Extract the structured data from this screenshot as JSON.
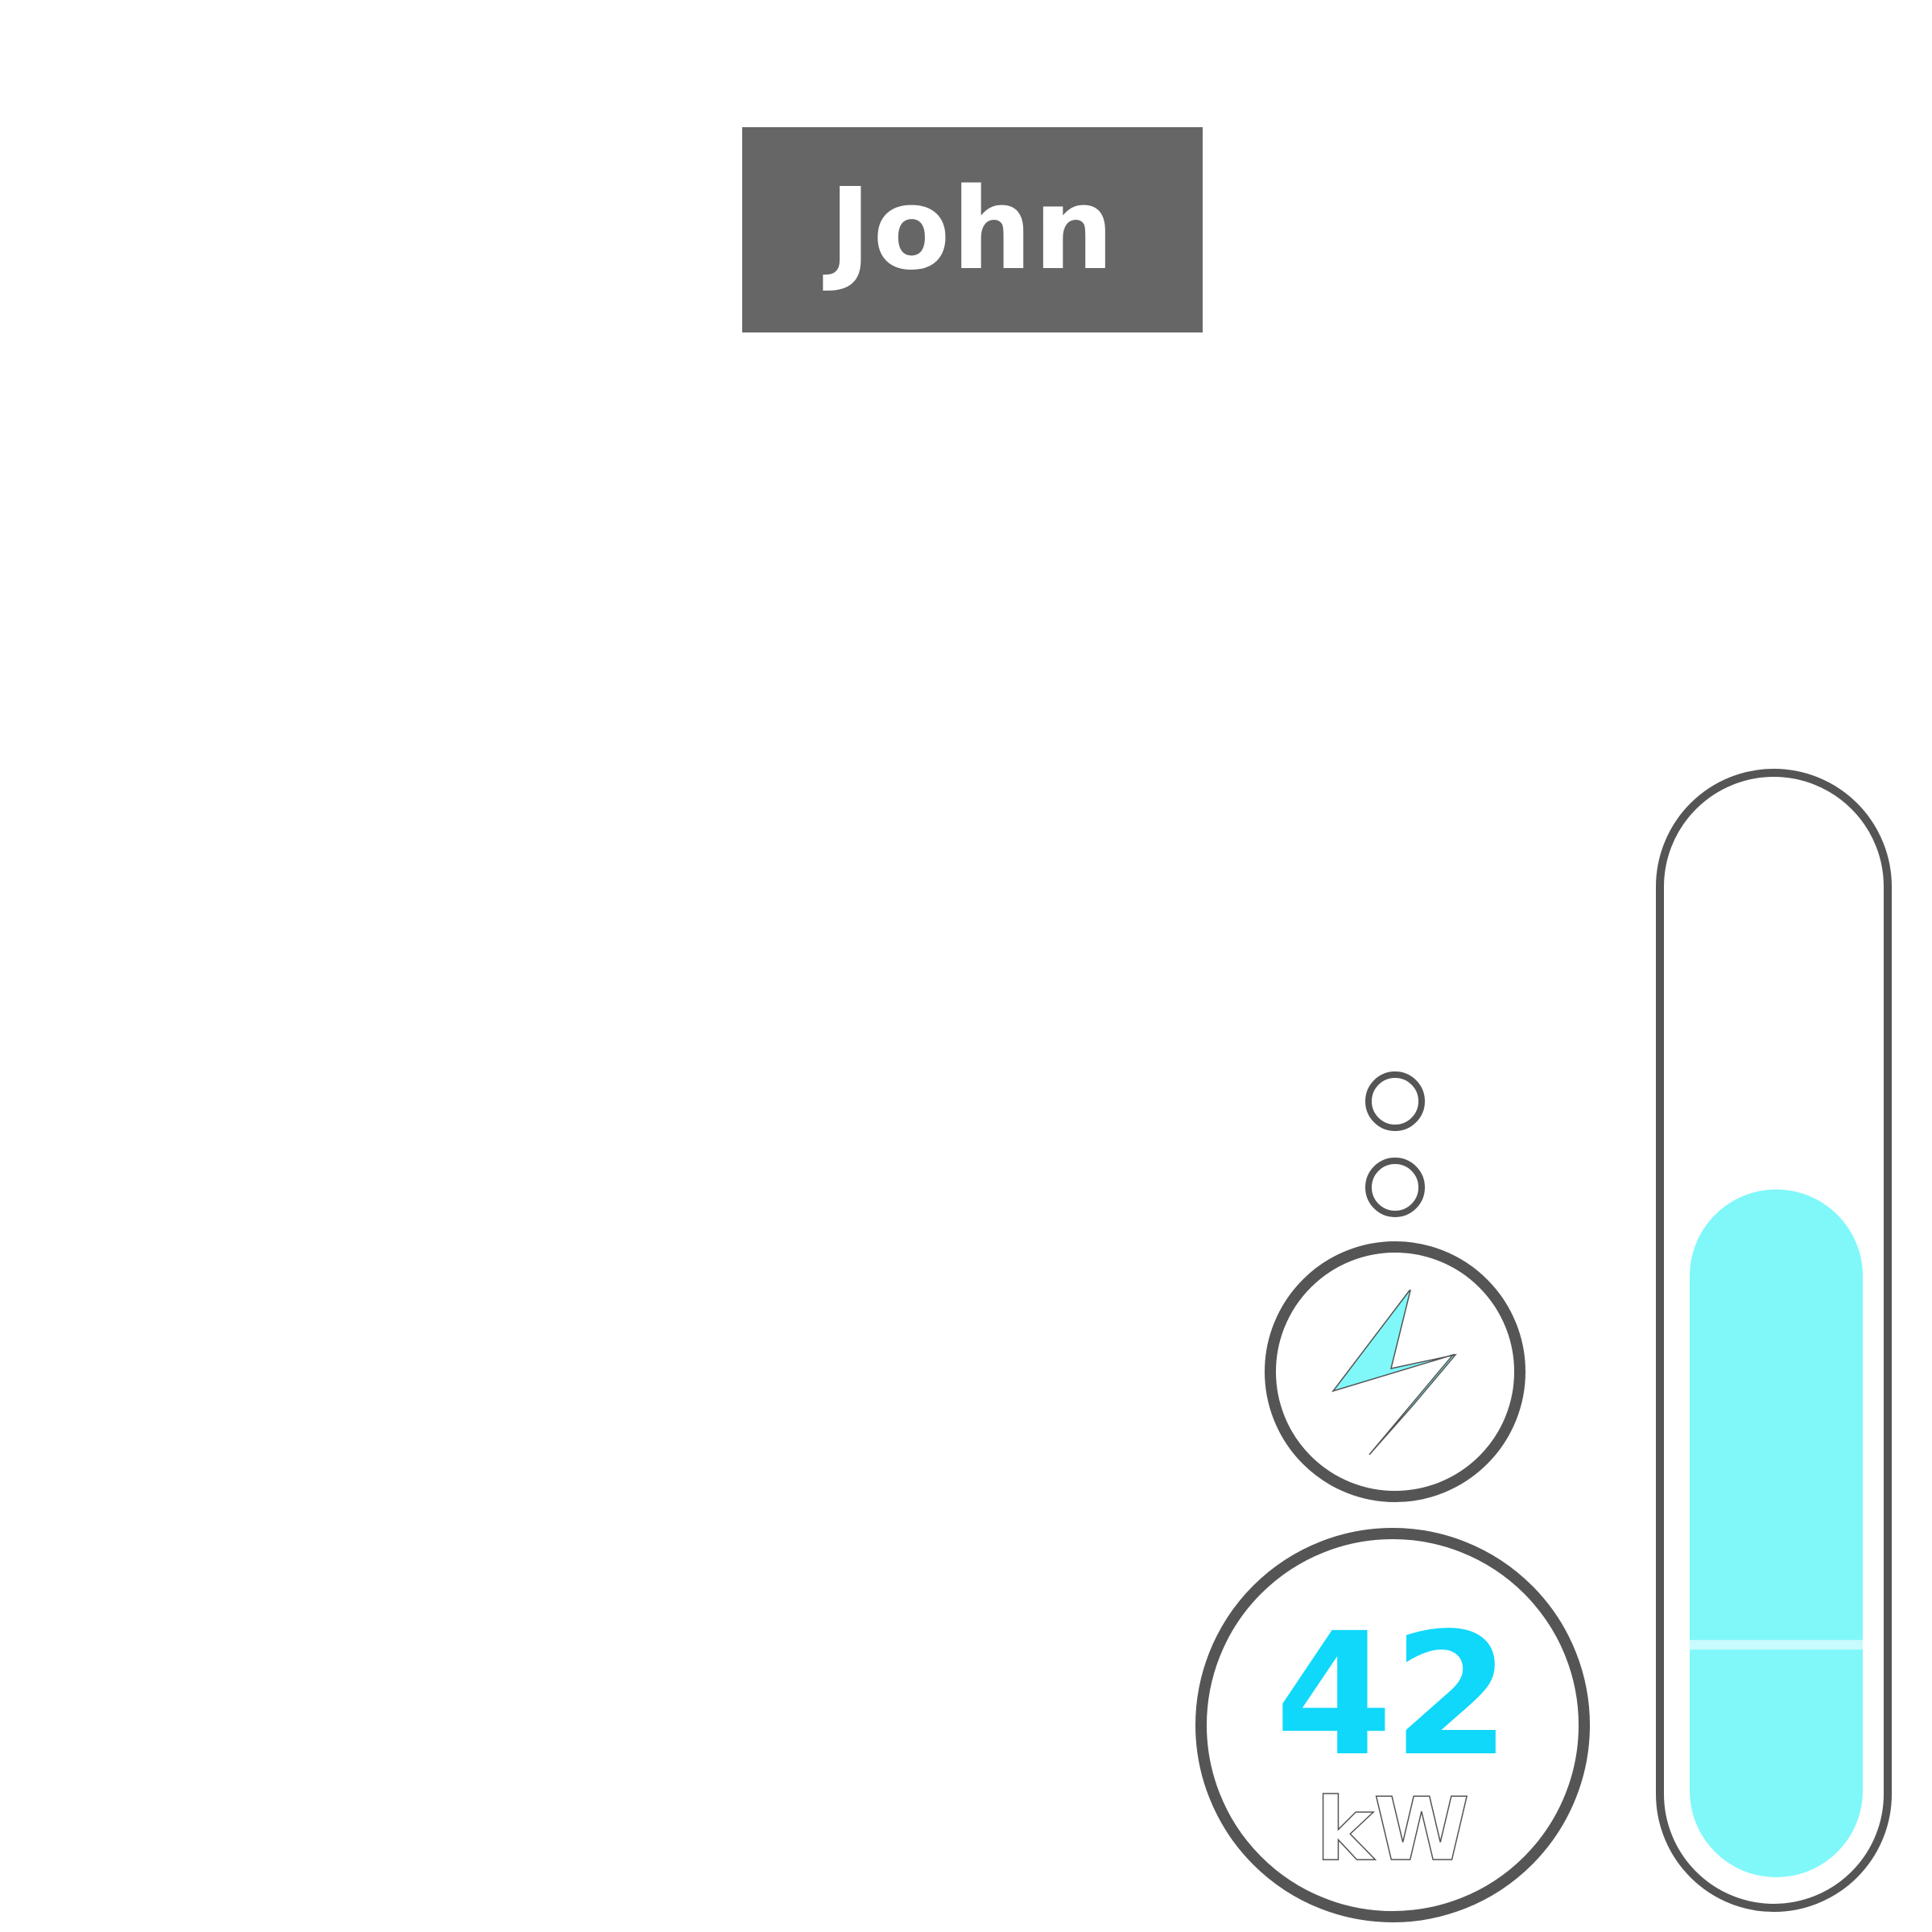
{
  "player": {
    "name": "John"
  },
  "power": {
    "value": "42",
    "unit": "kW"
  },
  "energy_bar": {
    "level": 0.64
  },
  "colors": {
    "name_tag_bg": "#666666",
    "outline": "#555555",
    "accent_value": "#10d8fa",
    "bolt_fill": "#80f8fa",
    "bar_fill": "#80f8fa",
    "background": "#ffffff"
  },
  "icons": {
    "status": "lightning-bolt-icon",
    "indicators": [
      "indicator-dot",
      "indicator-dot"
    ]
  }
}
